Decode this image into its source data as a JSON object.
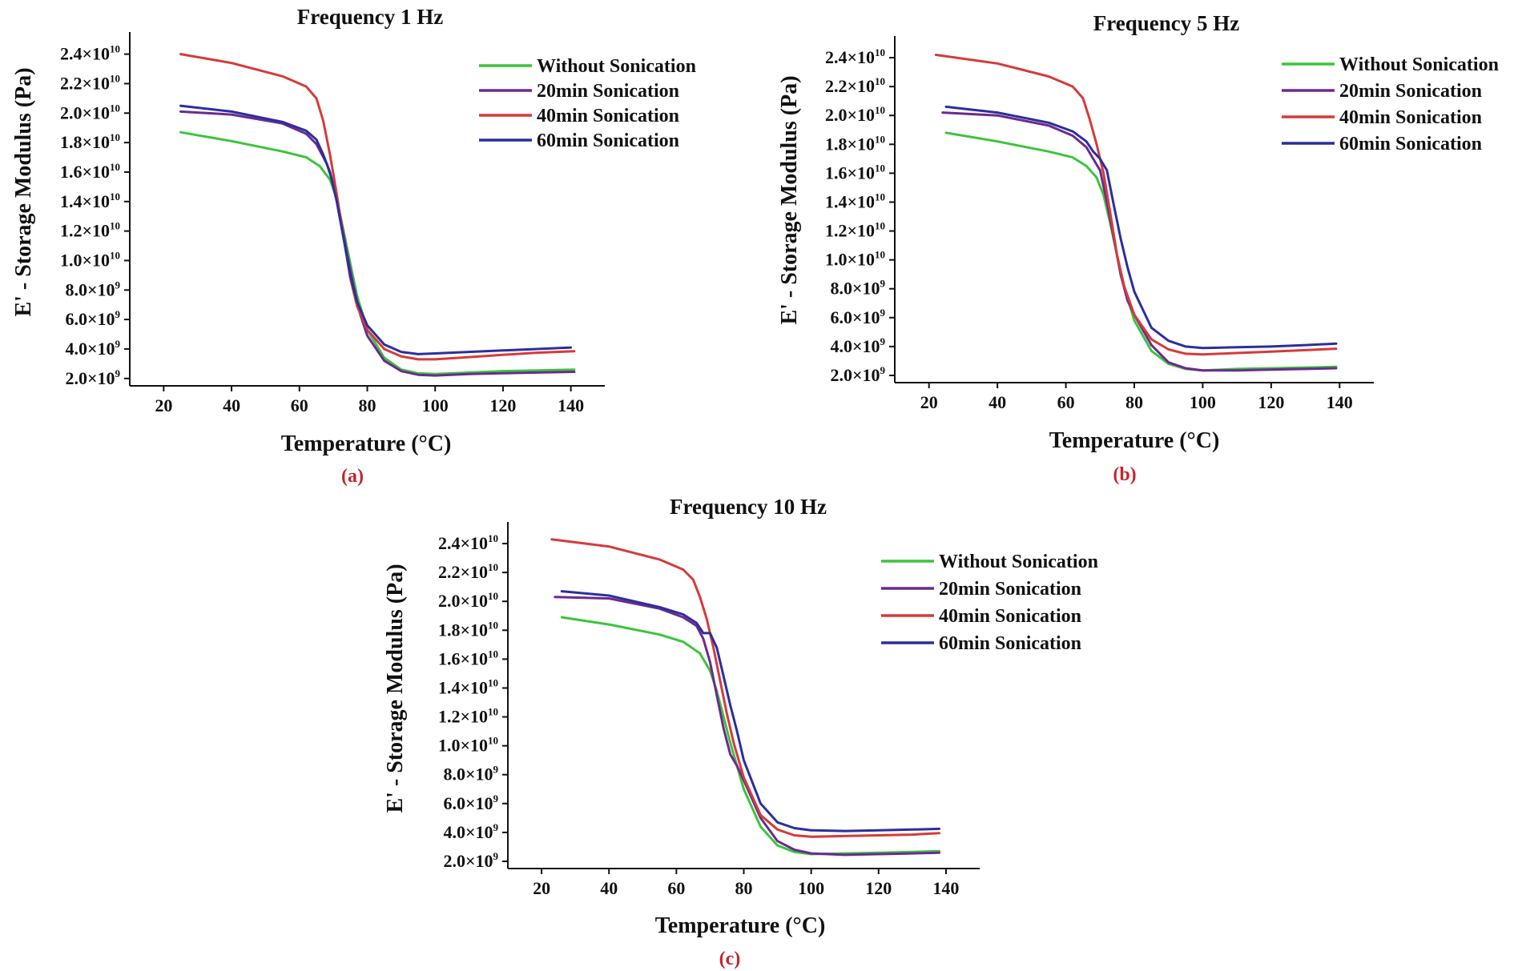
{
  "colors": {
    "without": "#3cc43c",
    "min20": "#6b2a8f",
    "min40": "#d63a3a",
    "min60": "#2a2f9c",
    "panel_letter": "#c0272d"
  },
  "chart_data": [
    {
      "type": "line",
      "title": "Frequency 1 Hz",
      "panel_label": "(a)",
      "xlabel": "Temperature (°C)",
      "ylabel": "E' - Storage Modulus (Pa)",
      "xlim": [
        10,
        150
      ],
      "ylim": [
        1500000000.0,
        25500000000.0
      ],
      "xticks": [
        20,
        40,
        60,
        80,
        100,
        120,
        140
      ],
      "yticks": [
        2000000000.0,
        4000000000.0,
        6000000000.0,
        8000000000.0,
        10000000000.0,
        12000000000.0,
        14000000000.0,
        16000000000.0,
        18000000000.0,
        20000000000.0,
        22000000000.0,
        24000000000.0
      ],
      "ytick_labels": [
        [
          "2.0×10",
          "9"
        ],
        [
          "4.0×10",
          "9"
        ],
        [
          "6.0×10",
          "9"
        ],
        [
          "8.0×10",
          "9"
        ],
        [
          "1.0×10",
          "10"
        ],
        [
          "1.2×10",
          "10"
        ],
        [
          "1.4×10",
          "10"
        ],
        [
          "1.6×10",
          "10"
        ],
        [
          "1.8×10",
          "10"
        ],
        [
          "2.0×10",
          "10"
        ],
        [
          "2.2×10",
          "10"
        ],
        [
          "2.4×10",
          "10"
        ]
      ],
      "legend_position": "top-right",
      "series": [
        {
          "name": "Without Sonication",
          "color_key": "without",
          "x": [
            25,
            40,
            55,
            62,
            66,
            69,
            71,
            73,
            75,
            77,
            80,
            85,
            90,
            95,
            100,
            110,
            120,
            130,
            141
          ],
          "y": [
            18700000000.0,
            18100000000.0,
            17400000000.0,
            17000000000.0,
            16400000000.0,
            15500000000.0,
            14200000000.0,
            12000000000.0,
            9800000000.0,
            7600000000.0,
            5300000000.0,
            3400000000.0,
            2600000000.0,
            2350000000.0,
            2300000000.0,
            2400000000.0,
            2500000000.0,
            2550000000.0,
            2600000000.0
          ]
        },
        {
          "name": "20min Sonication",
          "color_key": "min20",
          "x": [
            25,
            40,
            55,
            62,
            65,
            68,
            70,
            72,
            74,
            76,
            78,
            80,
            85,
            90,
            95,
            100,
            110,
            120,
            130,
            141
          ],
          "y": [
            20100000000.0,
            19900000000.0,
            19300000000.0,
            18600000000.0,
            17900000000.0,
            16600000000.0,
            15200000000.0,
            13000000000.0,
            10500000000.0,
            8200000000.0,
            6300000000.0,
            4900000000.0,
            3200000000.0,
            2500000000.0,
            2250000000.0,
            2200000000.0,
            2300000000.0,
            2350000000.0,
            2400000000.0,
            2450000000.0
          ]
        },
        {
          "name": "40min Sonication",
          "color_key": "min40",
          "x": [
            25,
            40,
            55,
            62,
            65,
            67,
            69,
            71,
            73,
            75,
            77,
            80,
            85,
            90,
            95,
            100,
            110,
            120,
            130,
            141
          ],
          "y": [
            24000000000.0,
            23400000000.0,
            22500000000.0,
            21800000000.0,
            21000000000.0,
            19500000000.0,
            17200000000.0,
            14500000000.0,
            11600000000.0,
            8800000000.0,
            6900000000.0,
            5300000000.0,
            4000000000.0,
            3500000000.0,
            3300000000.0,
            3300000000.0,
            3450000000.0,
            3600000000.0,
            3750000000.0,
            3850000000.0
          ]
        },
        {
          "name": "60min Sonication",
          "color_key": "min60",
          "x": [
            25,
            40,
            55,
            62,
            65,
            67,
            69,
            71,
            73,
            75,
            77,
            80,
            85,
            90,
            95,
            100,
            110,
            120,
            130,
            140
          ],
          "y": [
            20500000000.0,
            20100000000.0,
            19400000000.0,
            18800000000.0,
            18200000000.0,
            17200000000.0,
            16000000000.0,
            14000000000.0,
            11500000000.0,
            9000000000.0,
            7200000000.0,
            5600000000.0,
            4300000000.0,
            3800000000.0,
            3650000000.0,
            3700000000.0,
            3800000000.0,
            3900000000.0,
            4000000000.0,
            4100000000.0
          ]
        }
      ]
    },
    {
      "type": "line",
      "title": "Frequency 5 Hz",
      "panel_label": "(b)",
      "xlabel": "Temperature (°C)",
      "ylabel": "E' - Storage Modulus (Pa)",
      "xlim": [
        10,
        150
      ],
      "ylim": [
        1500000000.0,
        25500000000.0
      ],
      "xticks": [
        20,
        40,
        60,
        80,
        100,
        120,
        140
      ],
      "yticks": [
        2000000000.0,
        4000000000.0,
        6000000000.0,
        8000000000.0,
        10000000000.0,
        12000000000.0,
        14000000000.0,
        16000000000.0,
        18000000000.0,
        20000000000.0,
        22000000000.0,
        24000000000.0
      ],
      "ytick_labels": [
        [
          "2.0×10",
          "9"
        ],
        [
          "4.0×10",
          "9"
        ],
        [
          "6.0×10",
          "9"
        ],
        [
          "8.0×10",
          "9"
        ],
        [
          "1.0×10",
          "10"
        ],
        [
          "1.2×10",
          "10"
        ],
        [
          "1.4×10",
          "10"
        ],
        [
          "1.6×10",
          "10"
        ],
        [
          "1.8×10",
          "10"
        ],
        [
          "2.0×10",
          "10"
        ],
        [
          "2.2×10",
          "10"
        ],
        [
          "2.4×10",
          "10"
        ]
      ],
      "legend_position": "top-right",
      "series": [
        {
          "name": "Without Sonication",
          "color_key": "without",
          "x": [
            25,
            40,
            55,
            62,
            66,
            69,
            71,
            73,
            75,
            77,
            80,
            85,
            90,
            95,
            100,
            110,
            120,
            130,
            139
          ],
          "y": [
            18800000000.0,
            18200000000.0,
            17500000000.0,
            17100000000.0,
            16500000000.0,
            15700000000.0,
            14500000000.0,
            12500000000.0,
            10300000000.0,
            8200000000.0,
            5800000000.0,
            3700000000.0,
            2800000000.0,
            2450000000.0,
            2350000000.0,
            2450000000.0,
            2500000000.0,
            2550000000.0,
            2600000000.0
          ]
        },
        {
          "name": "20min Sonication",
          "color_key": "min20",
          "x": [
            24,
            40,
            55,
            62,
            66,
            68,
            70,
            72,
            74,
            76,
            78,
            80,
            85,
            90,
            95,
            100,
            110,
            120,
            130,
            139
          ],
          "y": [
            20200000000.0,
            20000000000.0,
            19300000000.0,
            18600000000.0,
            17800000000.0,
            17000000000.0,
            16200000000.0,
            14000000000.0,
            11500000000.0,
            9000000000.0,
            7200000000.0,
            6200000000.0,
            4100000000.0,
            2900000000.0,
            2500000000.0,
            2350000000.0,
            2350000000.0,
            2400000000.0,
            2450000000.0,
            2500000000.0
          ]
        },
        {
          "name": "40min Sonication",
          "color_key": "min40",
          "x": [
            22,
            40,
            55,
            62,
            65,
            67,
            69,
            71,
            73,
            75,
            77,
            80,
            85,
            90,
            95,
            100,
            110,
            120,
            130,
            139
          ],
          "y": [
            24200000000.0,
            23600000000.0,
            22700000000.0,
            22000000000.0,
            21200000000.0,
            19700000000.0,
            18000000000.0,
            16000000000.0,
            13200000000.0,
            10300000000.0,
            8200000000.0,
            6200000000.0,
            4500000000.0,
            3800000000.0,
            3500000000.0,
            3450000000.0,
            3550000000.0,
            3650000000.0,
            3750000000.0,
            3850000000.0
          ]
        },
        {
          "name": "60min Sonication",
          "color_key": "min60",
          "x": [
            25,
            40,
            55,
            62,
            66,
            68,
            70,
            72,
            74,
            76,
            78,
            80,
            85,
            90,
            95,
            100,
            110,
            120,
            130,
            139
          ],
          "y": [
            20600000000.0,
            20200000000.0,
            19500000000.0,
            18900000000.0,
            18200000000.0,
            17500000000.0,
            17000000000.0,
            16200000000.0,
            13800000000.0,
            11500000000.0,
            9500000000.0,
            7800000000.0,
            5300000000.0,
            4400000000.0,
            4000000000.0,
            3900000000.0,
            3950000000.0,
            4000000000.0,
            4100000000.0,
            4200000000.0
          ]
        }
      ]
    },
    {
      "type": "line",
      "title": "Frequency 10 Hz",
      "panel_label": "(c)",
      "xlabel": "Temperature (°C)",
      "ylabel": "E' - Storage Modulus (Pa)",
      "xlim": [
        10,
        150
      ],
      "ylim": [
        1500000000.0,
        25500000000.0
      ],
      "xticks": [
        20,
        40,
        60,
        80,
        100,
        120,
        140
      ],
      "yticks": [
        2000000000.0,
        4000000000.0,
        6000000000.0,
        8000000000.0,
        10000000000.0,
        12000000000.0,
        14000000000.0,
        16000000000.0,
        18000000000.0,
        20000000000.0,
        22000000000.0,
        24000000000.0
      ],
      "ytick_labels": [
        [
          "2.0×10",
          "9"
        ],
        [
          "4.0×10",
          "9"
        ],
        [
          "6.0×10",
          "9"
        ],
        [
          "8.0×10",
          "9"
        ],
        [
          "1.0×10",
          "10"
        ],
        [
          "1.2×10",
          "10"
        ],
        [
          "1.4×10",
          "10"
        ],
        [
          "1.6×10",
          "10"
        ],
        [
          "1.8×10",
          "10"
        ],
        [
          "2.0×10",
          "10"
        ],
        [
          "2.2×10",
          "10"
        ],
        [
          "2.4×10",
          "10"
        ]
      ],
      "legend_position": "top-right",
      "series": [
        {
          "name": "Without Sonication",
          "color_key": "without",
          "x": [
            26,
            40,
            55,
            62,
            67,
            70,
            72,
            74,
            76,
            78,
            80,
            85,
            90,
            95,
            100,
            110,
            120,
            130,
            138
          ],
          "y": [
            18900000000.0,
            18400000000.0,
            17700000000.0,
            17200000000.0,
            16400000000.0,
            15200000000.0,
            13800000000.0,
            12000000000.0,
            10200000000.0,
            8600000000.0,
            7000000000.0,
            4400000000.0,
            3100000000.0,
            2650000000.0,
            2500000000.0,
            2550000000.0,
            2600000000.0,
            2650000000.0,
            2700000000.0
          ]
        },
        {
          "name": "20min Sonication",
          "color_key": "min20",
          "x": [
            24,
            40,
            55,
            62,
            66,
            68,
            70,
            72,
            74,
            76,
            78,
            80,
            85,
            90,
            95,
            100,
            110,
            120,
            130,
            138
          ],
          "y": [
            20300000000.0,
            20200000000.0,
            19500000000.0,
            18900000000.0,
            18300000000.0,
            17400000000.0,
            15800000000.0,
            13500000000.0,
            11200000000.0,
            9400000000.0,
            8600000000.0,
            7600000000.0,
            5000000000.0,
            3400000000.0,
            2800000000.0,
            2550000000.0,
            2450000000.0,
            2500000000.0,
            2550000000.0,
            2600000000.0
          ]
        },
        {
          "name": "40min Sonication",
          "color_key": "min40",
          "x": [
            23,
            40,
            55,
            62,
            65,
            67,
            69,
            71,
            73,
            75,
            77,
            80,
            85,
            90,
            95,
            100,
            110,
            120,
            130,
            138
          ],
          "y": [
            24300000000.0,
            23800000000.0,
            22900000000.0,
            22200000000.0,
            21500000000.0,
            20300000000.0,
            18800000000.0,
            16800000000.0,
            14500000000.0,
            12200000000.0,
            10200000000.0,
            7800000000.0,
            5200000000.0,
            4200000000.0,
            3800000000.0,
            3700000000.0,
            3750000000.0,
            3800000000.0,
            3850000000.0,
            3950000000.0
          ]
        },
        {
          "name": "60min Sonication",
          "color_key": "min60",
          "x": [
            26,
            40,
            55,
            62,
            66,
            68,
            70,
            72,
            74,
            76,
            78,
            80,
            85,
            90,
            95,
            100,
            110,
            120,
            130,
            138
          ],
          "y": [
            20700000000.0,
            20400000000.0,
            19600000000.0,
            19100000000.0,
            18500000000.0,
            17800000000.0,
            17800000000.0,
            16800000000.0,
            14800000000.0,
            12800000000.0,
            11000000000.0,
            9000000000.0,
            6000000000.0,
            4700000000.0,
            4300000000.0,
            4150000000.0,
            4100000000.0,
            4150000000.0,
            4200000000.0,
            4250000000.0
          ]
        }
      ]
    }
  ]
}
